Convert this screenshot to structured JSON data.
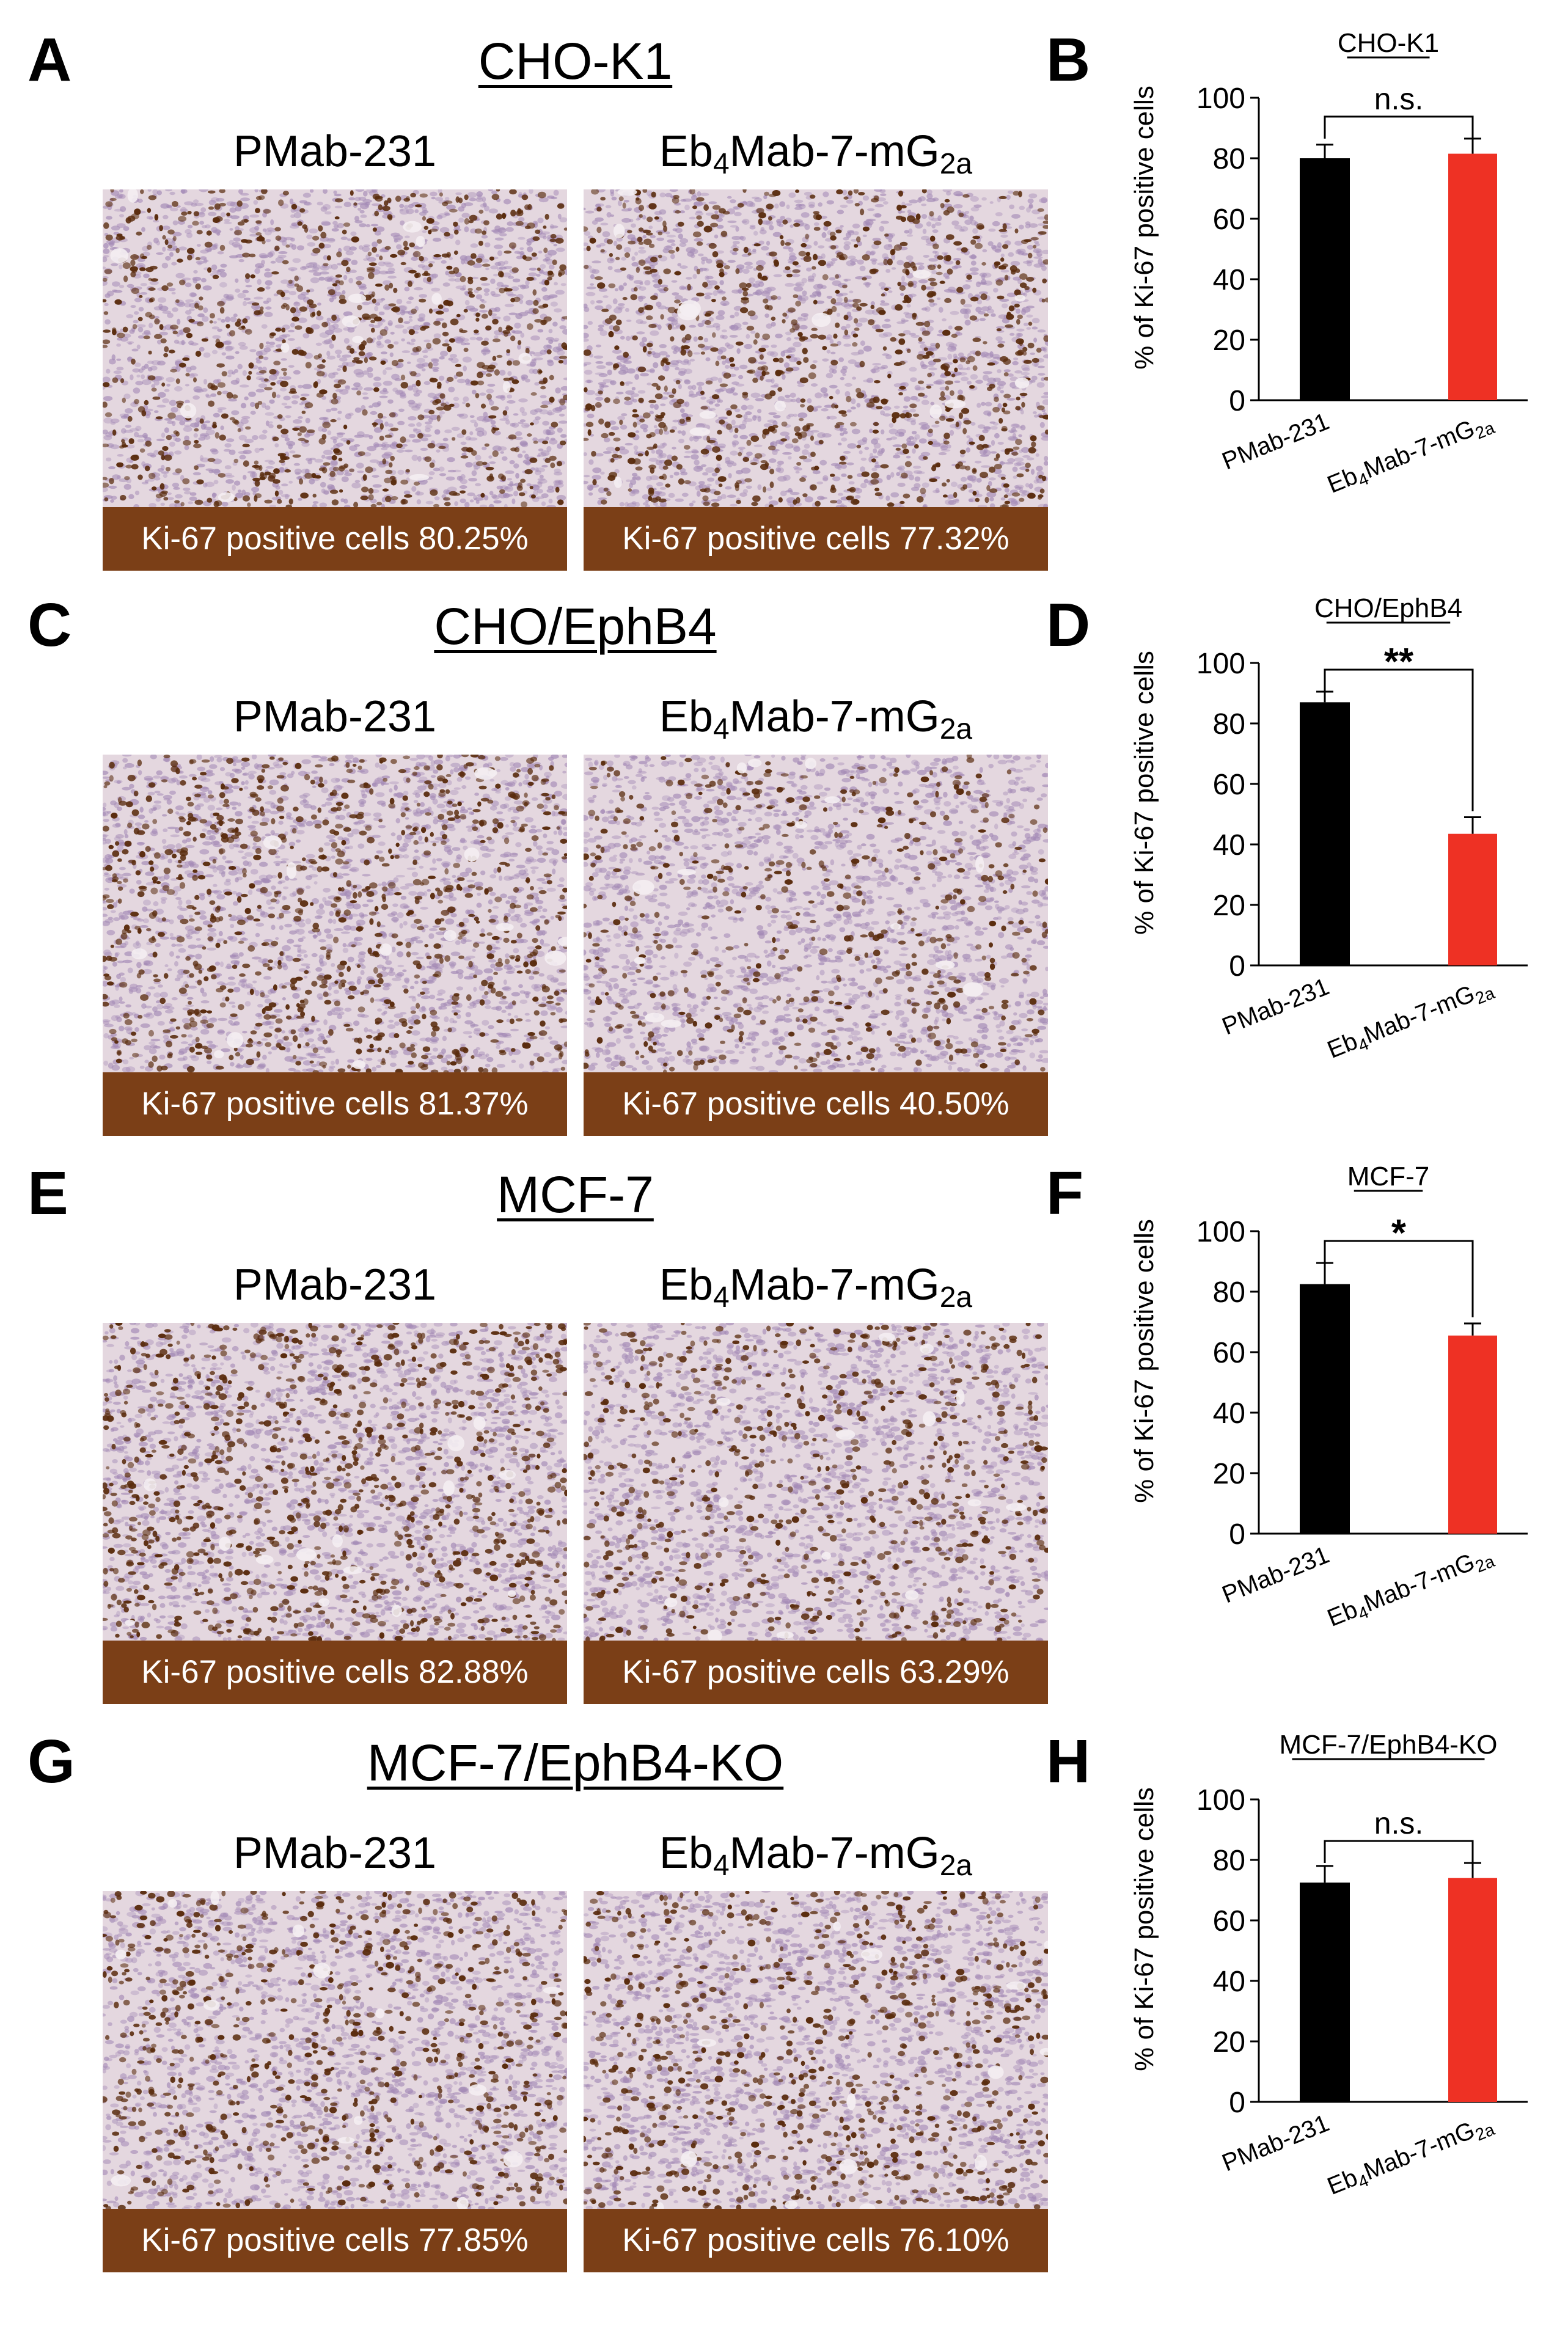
{
  "panels": [
    {
      "letter": "A",
      "cell_line": "CHO-K1",
      "antibodies": [
        {
          "base": "PMab-231",
          "sub1": "",
          "mid": "",
          "sub2": ""
        },
        {
          "base": "Eb",
          "sub1": "4",
          "mid": "Mab-7-mG",
          "sub2": "2a"
        }
      ],
      "captions": [
        "Ki-67 positive cells 80.25%",
        "Ki-67 positive cells 77.32%"
      ],
      "density": [
        0.55,
        0.55
      ]
    },
    {
      "letter": "C",
      "cell_line": "CHO/EphB4",
      "antibodies": [
        {
          "base": "PMab-231",
          "sub1": "",
          "mid": "",
          "sub2": ""
        },
        {
          "base": "Eb",
          "sub1": "4",
          "mid": "Mab-7-mG",
          "sub2": "2a"
        }
      ],
      "captions": [
        "Ki-67 positive cells 81.37%",
        "Ki-67 positive cells 40.50%"
      ],
      "density": [
        0.6,
        0.35
      ]
    },
    {
      "letter": "E",
      "cell_line": "MCF-7",
      "antibodies": [
        {
          "base": "PMab-231",
          "sub1": "",
          "mid": "",
          "sub2": ""
        },
        {
          "base": "Eb",
          "sub1": "4",
          "mid": "Mab-7-mG",
          "sub2": "2a"
        }
      ],
      "captions": [
        "Ki-67 positive cells 82.88%",
        "Ki-67 positive cells 63.29%"
      ],
      "density": [
        0.65,
        0.45
      ]
    },
    {
      "letter": "G",
      "cell_line": "MCF-7/EphB4-KO",
      "antibodies": [
        {
          "base": "PMab-231",
          "sub1": "",
          "mid": "",
          "sub2": ""
        },
        {
          "base": "Eb",
          "sub1": "4",
          "mid": "Mab-7-mG",
          "sub2": "2a"
        }
      ],
      "captions": [
        "Ki-67 positive cells 77.85%",
        "Ki-67 positive cells 76.10%"
      ],
      "density": [
        0.5,
        0.5
      ]
    }
  ],
  "colors": {
    "caption_bg": "#7b3f17",
    "bar_control": "#000000",
    "bar_treatment": "#ee3124",
    "tissue_bg": "#e4d7df",
    "nucleus": "#5a2c0e",
    "cell": "#a48ab6"
  },
  "chart_data": [
    {
      "letter": "B",
      "type": "bar",
      "title": "CHO-K1",
      "categories": [
        "PMab-231",
        "Eb4Mab-7-mG2a"
      ],
      "cat_labels": [
        {
          "base": "PMab-231",
          "sub1": "",
          "mid": "",
          "sub2": ""
        },
        {
          "base": "Eb",
          "sub1": "4",
          "mid": "Mab-7-mG",
          "sub2": "2a"
        }
      ],
      "values": [
        80,
        81.5
      ],
      "errors": [
        4.5,
        5
      ],
      "ylabel": "% of Ki-67 positive cells",
      "ylim": [
        0,
        100
      ],
      "yticks": [
        0,
        20,
        40,
        60,
        80,
        100
      ],
      "significance": "n.s."
    },
    {
      "letter": "D",
      "type": "bar",
      "title": "CHO/EphB4",
      "categories": [
        "PMab-231",
        "Eb4Mab-7-mG2a"
      ],
      "cat_labels": [
        {
          "base": "PMab-231",
          "sub1": "",
          "mid": "",
          "sub2": ""
        },
        {
          "base": "Eb",
          "sub1": "4",
          "mid": "Mab-7-mG",
          "sub2": "2a"
        }
      ],
      "values": [
        87,
        43.5
      ],
      "errors": [
        3.5,
        5.5
      ],
      "ylabel": "% of Ki-67 positive cells",
      "ylim": [
        0,
        100
      ],
      "yticks": [
        0,
        20,
        40,
        60,
        80,
        100
      ],
      "significance": "**"
    },
    {
      "letter": "F",
      "type": "bar",
      "title": "MCF-7",
      "categories": [
        "PMab-231",
        "Eb4Mab-7-mG2a"
      ],
      "cat_labels": [
        {
          "base": "PMab-231",
          "sub1": "",
          "mid": "",
          "sub2": ""
        },
        {
          "base": "Eb",
          "sub1": "4",
          "mid": "Mab-7-mG",
          "sub2": "2a"
        }
      ],
      "values": [
        82.5,
        65.5
      ],
      "errors": [
        7,
        4
      ],
      "ylabel": "% of Ki-67 positive cells",
      "ylim": [
        0,
        100
      ],
      "yticks": [
        0,
        20,
        40,
        60,
        80,
        100
      ],
      "significance": "*"
    },
    {
      "letter": "H",
      "type": "bar",
      "title": "MCF-7/EphB4-KO",
      "categories": [
        "PMab-231",
        "Eb4Mab-7-mG2a"
      ],
      "cat_labels": [
        {
          "base": "PMab-231",
          "sub1": "",
          "mid": "",
          "sub2": ""
        },
        {
          "base": "Eb",
          "sub1": "4",
          "mid": "Mab-7-mG",
          "sub2": "2a"
        }
      ],
      "values": [
        72.5,
        74
      ],
      "errors": [
        5.5,
        5
      ],
      "ylabel": "% of Ki-67 positive cells",
      "ylim": [
        0,
        100
      ],
      "yticks": [
        0,
        20,
        40,
        60,
        80,
        100
      ],
      "significance": "n.s."
    }
  ]
}
